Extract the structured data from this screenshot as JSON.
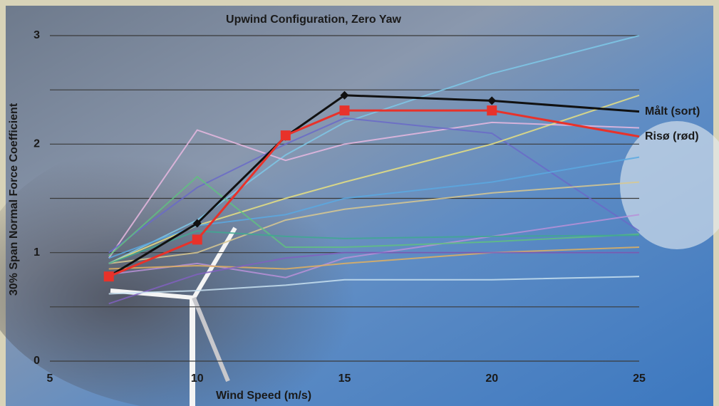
{
  "chart_data": {
    "type": "line",
    "title": "Upwind Configuration, Zero Yaw",
    "x_label": "Wind Speed (m/s)",
    "y_label": "30% Span Normal Force Coefficient",
    "xlim": [
      5,
      25
    ],
    "xticks": [
      5,
      10,
      15,
      20,
      25
    ],
    "ylim": [
      0,
      3
    ],
    "yticks": [
      0,
      1,
      2,
      3
    ],
    "minor_yticks": [
      0.5,
      1.5,
      2.5
    ],
    "grid": true,
    "x": [
      7,
      10,
      13,
      15,
      20,
      25
    ],
    "series": [
      {
        "color": "#7ec8e8",
        "values": [
          0.9,
          1.3,
          1.9,
          2.2,
          2.65,
          3.0
        ]
      },
      {
        "color": "#e8b8e0",
        "values": [
          0.95,
          2.13,
          1.85,
          2.0,
          2.2,
          2.15
        ]
      },
      {
        "color": "#6a6ac8",
        "values": [
          1.0,
          1.6,
          2.0,
          2.24,
          2.1,
          1.2
        ]
      },
      {
        "color": "#e8e080",
        "values": [
          0.9,
          1.25,
          1.5,
          1.65,
          2.0,
          2.45
        ]
      },
      {
        "color": "#5aa8e0",
        "values": [
          0.95,
          1.25,
          1.35,
          1.5,
          1.65,
          1.88
        ]
      },
      {
        "color": "#d8c890",
        "values": [
          0.9,
          1.0,
          1.3,
          1.4,
          1.55,
          1.65
        ]
      },
      {
        "color": "#b890d8",
        "values": [
          0.8,
          0.9,
          0.77,
          0.95,
          1.15,
          1.35
        ]
      },
      {
        "color": "#60c080",
        "values": [
          0.97,
          1.7,
          1.05,
          1.05,
          1.1,
          1.17
        ]
      },
      {
        "color": "#40a890",
        "values": [
          0.9,
          1.2,
          1.15,
          1.13,
          1.15,
          1.16
        ]
      },
      {
        "color": "#e0b060",
        "values": [
          0.85,
          0.88,
          0.85,
          0.9,
          1.0,
          1.05
        ]
      },
      {
        "color": "#8060c0",
        "values": [
          0.53,
          0.8,
          0.95,
          1.0,
          1.0,
          1.0
        ]
      },
      {
        "color": "#c8e0f0",
        "values": [
          0.62,
          0.65,
          0.7,
          0.75,
          0.75,
          0.78
        ]
      },
      {
        "name": "Målt (sort)",
        "color": "#111111",
        "marker": "diamond",
        "values": [
          0.78,
          1.27,
          2.07,
          2.45,
          2.4,
          2.3
        ]
      },
      {
        "name": "Risø (rød)",
        "color": "#e8322a",
        "marker": "square",
        "values": [
          0.78,
          1.12,
          2.08,
          2.31,
          2.31,
          2.07
        ]
      }
    ]
  }
}
